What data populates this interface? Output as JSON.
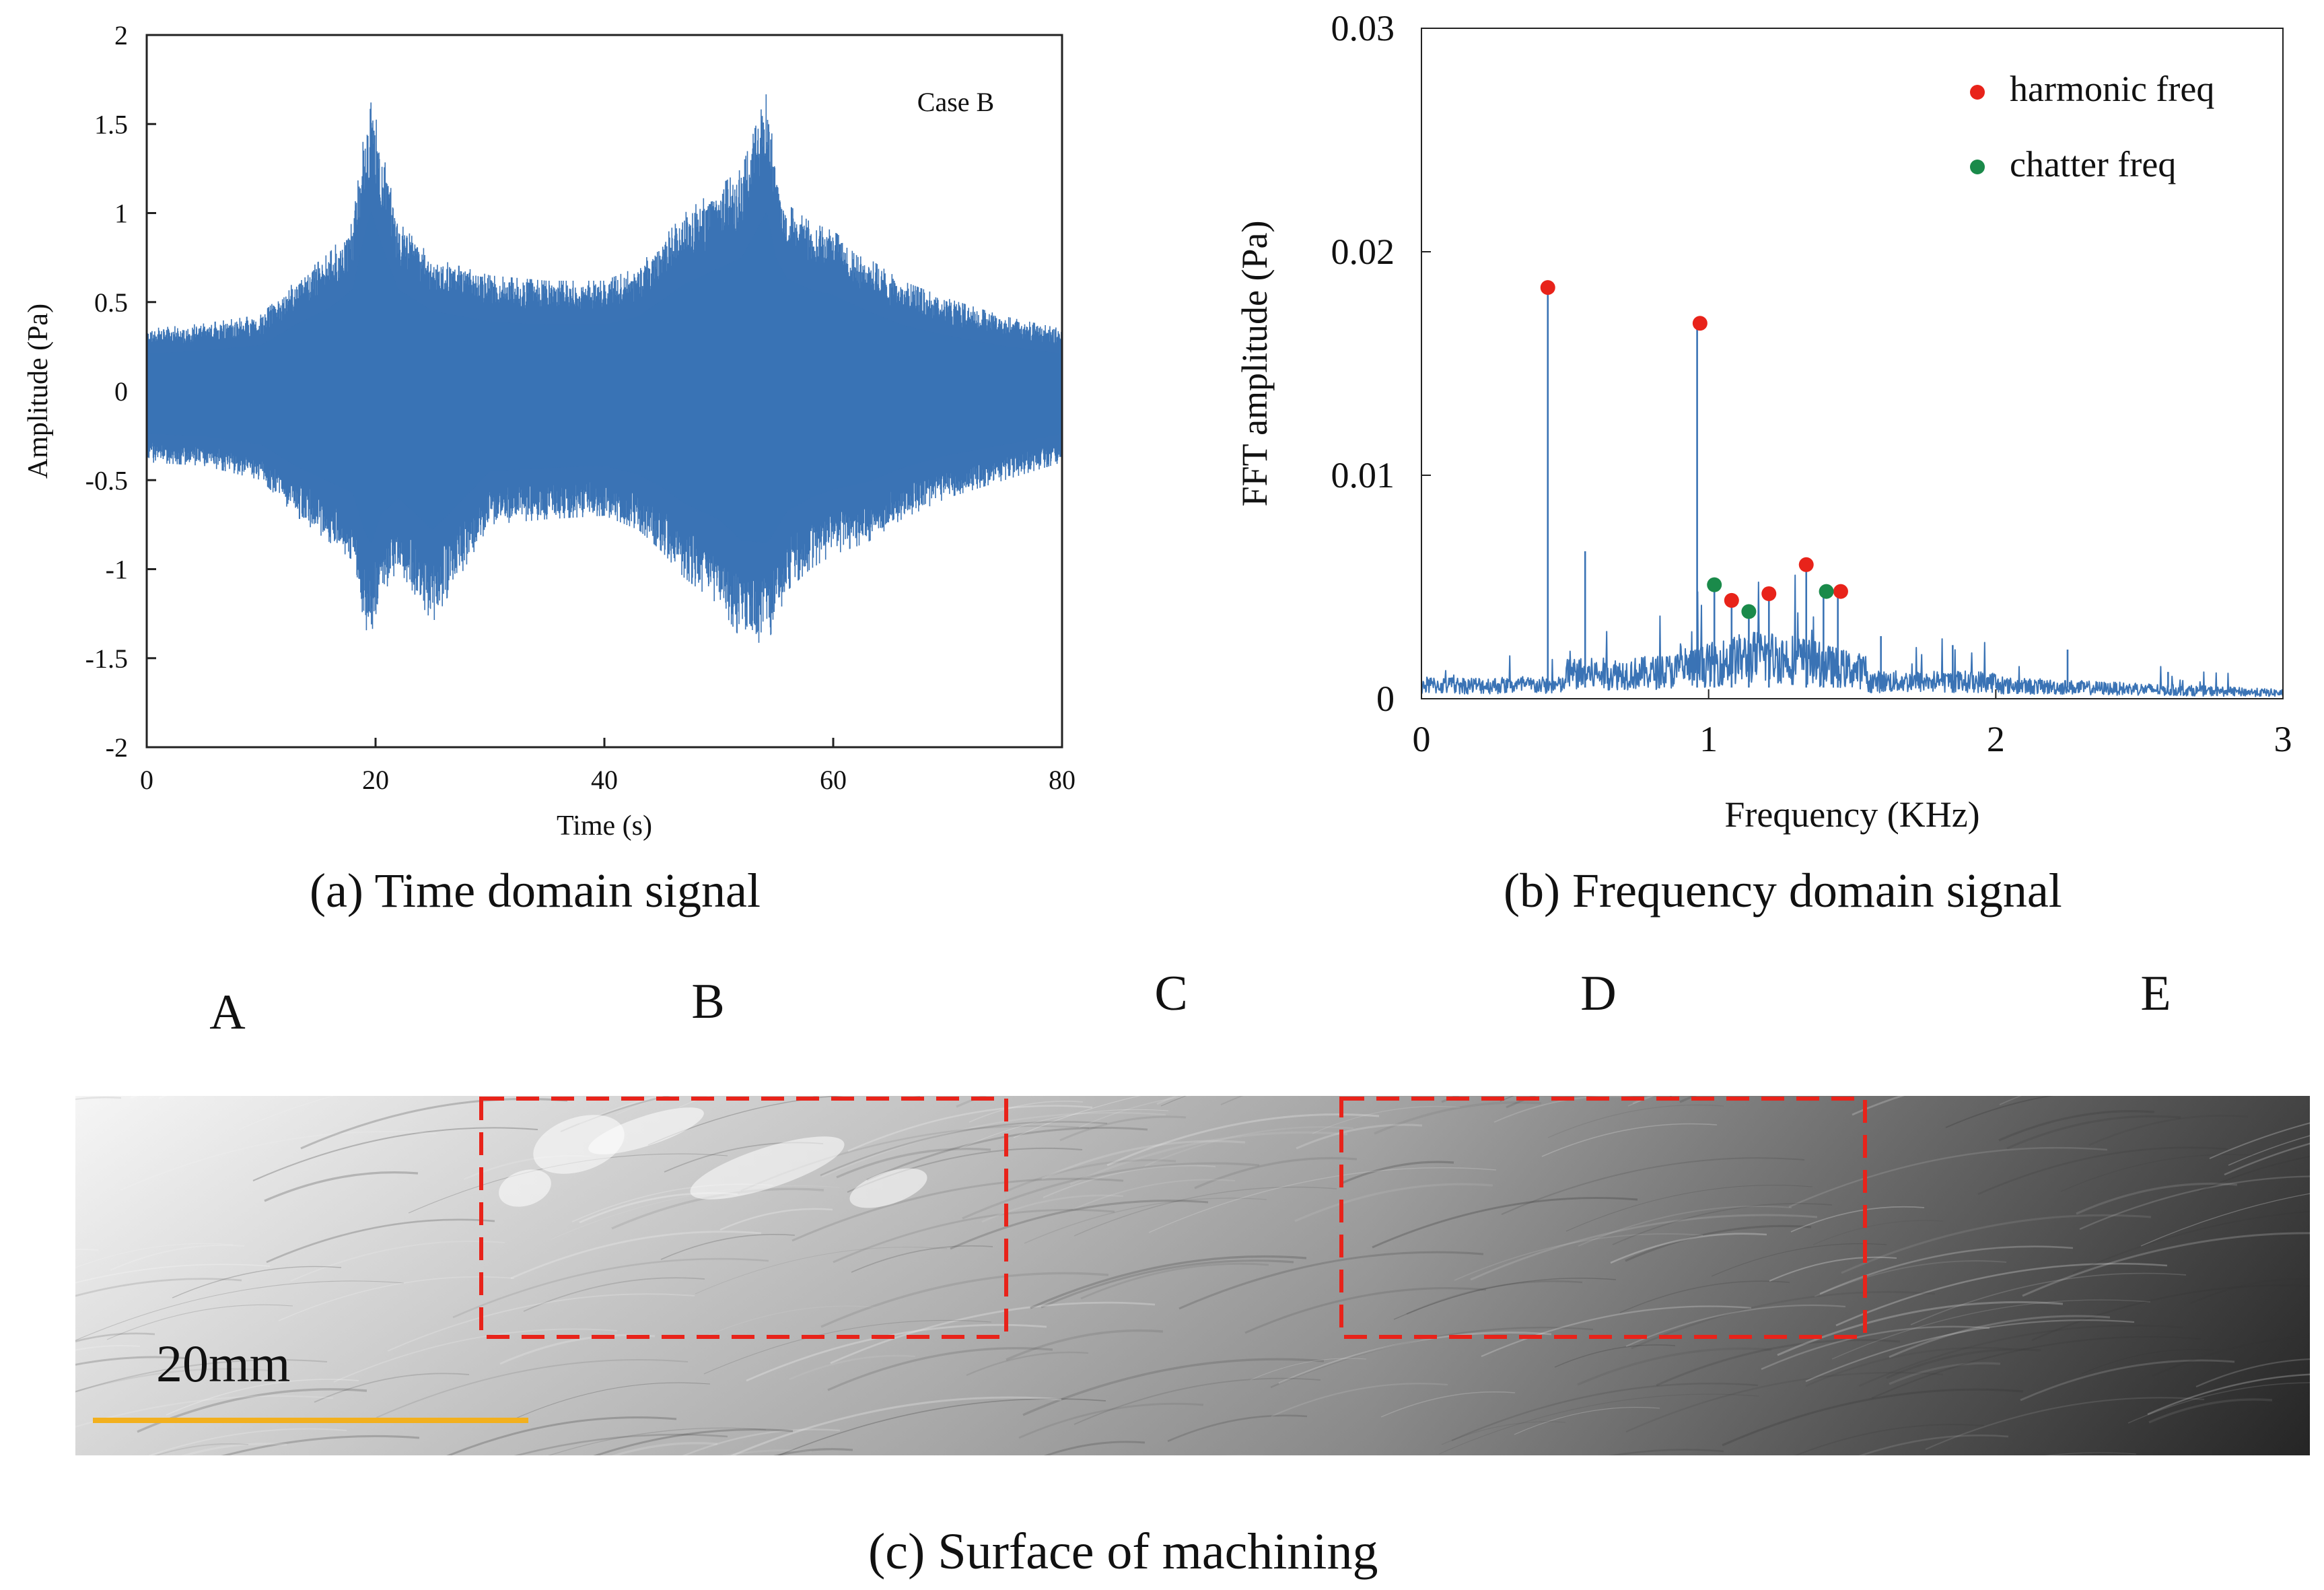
{
  "chart_data": [
    {
      "type": "line",
      "title": "Case B",
      "xlabel": "Time (s)",
      "ylabel": "Amplitude (Pa)",
      "xlim": [
        0,
        80
      ],
      "ylim": [
        -2,
        2
      ],
      "xticks": [
        0,
        20,
        40,
        60,
        80
      ],
      "xtick_labels": [
        "0",
        "20",
        "40",
        "60",
        "80"
      ],
      "yticks": [
        -2,
        -1.5,
        -1,
        -0.5,
        0,
        0.5,
        1,
        1.5,
        2
      ],
      "ytick_labels": [
        "-2",
        "-1.5",
        "-1",
        "-0.5",
        "0",
        "0.5",
        "1",
        "1.5",
        "2"
      ],
      "series_color": "#3a73b5",
      "envelope": {
        "time": [
          0,
          5,
          10,
          13,
          16,
          18,
          19,
          19.6,
          20.5,
          22,
          25,
          30,
          35,
          40,
          43,
          45,
          47,
          50,
          52,
          54.2,
          55,
          56,
          58,
          60,
          63,
          66,
          70,
          75,
          80
        ],
        "upper": [
          0.35,
          0.38,
          0.43,
          0.62,
          0.78,
          0.95,
          1.45,
          1.68,
          1.38,
          0.95,
          0.75,
          0.65,
          0.62,
          0.62,
          0.7,
          0.85,
          1.0,
          1.15,
          1.25,
          1.68,
          1.25,
          1.05,
          0.95,
          0.9,
          0.75,
          0.62,
          0.52,
          0.42,
          0.35
        ],
        "lower": [
          -0.4,
          -0.42,
          -0.5,
          -0.7,
          -0.85,
          -0.95,
          -1.3,
          -1.43,
          -1.15,
          -1.0,
          -1.3,
          -0.75,
          -0.72,
          -0.7,
          -0.78,
          -0.9,
          -1.05,
          -1.2,
          -1.4,
          -1.42,
          -1.3,
          -1.12,
          -1.0,
          -0.92,
          -0.85,
          -0.72,
          -0.6,
          -0.5,
          -0.4
        ]
      },
      "caption": "(a) Time domain signal"
    },
    {
      "type": "line",
      "xlabel": "Frequency (KHz)",
      "ylabel": "FFT amplitude (Pa)",
      "xlim": [
        0,
        3
      ],
      "ylim": [
        0,
        0.03
      ],
      "xticks": [
        0,
        1,
        2,
        3
      ],
      "xtick_labels": [
        "0",
        "1",
        "2",
        "3"
      ],
      "yticks": [
        0,
        0.01,
        0.02,
        0.03
      ],
      "ytick_labels": [
        "0",
        "0.01",
        "0.02",
        "0.03"
      ],
      "series_color": "#3a73b5",
      "peaks": [
        {
          "x": 0.44,
          "y": 0.0183
        },
        {
          "x": 0.57,
          "y": 0.0066
        },
        {
          "x": 0.96,
          "y": 0.0167
        },
        {
          "x": 1.02,
          "y": 0.005
        },
        {
          "x": 1.08,
          "y": 0.0044
        },
        {
          "x": 1.14,
          "y": 0.0039
        },
        {
          "x": 1.21,
          "y": 0.0047
        },
        {
          "x": 1.34,
          "y": 0.006
        },
        {
          "x": 1.4,
          "y": 0.0048
        },
        {
          "x": 1.45,
          "y": 0.0048
        },
        {
          "x": 1.6,
          "y": 0.0028
        },
        {
          "x": 1.85,
          "y": 0.0024
        },
        {
          "x": 2.25,
          "y": 0.0022
        },
        {
          "x": 2.6,
          "y": 0.0012
        }
      ],
      "harmonic_freq": [
        {
          "x": 0.44,
          "y": 0.0184
        },
        {
          "x": 0.97,
          "y": 0.0168
        },
        {
          "x": 1.08,
          "y": 0.0044
        },
        {
          "x": 1.21,
          "y": 0.0047
        },
        {
          "x": 1.34,
          "y": 0.006
        },
        {
          "x": 1.46,
          "y": 0.0048
        }
      ],
      "chatter_freq": [
        {
          "x": 1.02,
          "y": 0.0051
        },
        {
          "x": 1.14,
          "y": 0.0039
        },
        {
          "x": 1.41,
          "y": 0.0048
        }
      ],
      "legend": [
        {
          "label": "harmonic freq",
          "color": "#e8231a"
        },
        {
          "label": "chatter freq",
          "color": "#1a8a4a"
        }
      ],
      "legend_position": "top-right",
      "caption": "(b) Frequency domain signal"
    }
  ],
  "surface_figure": {
    "region_labels": [
      "A",
      "B",
      "C",
      "D",
      "E"
    ],
    "highlighted_regions": [
      "B",
      "D"
    ],
    "highlight_color": "#e8231a",
    "scale_bar_label": "20mm",
    "scale_bar_color": "#f2b01e",
    "caption": "(c) Surface of machining"
  }
}
